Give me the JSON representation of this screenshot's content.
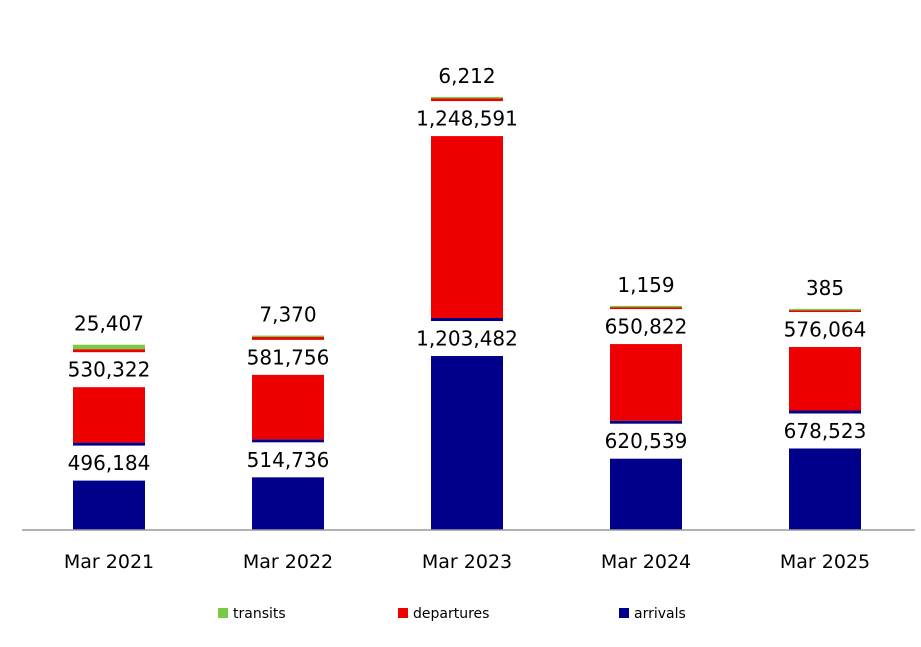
{
  "chart_data": {
    "type": "bar",
    "stacked": true,
    "categories": [
      "Mar 2021",
      "Mar 2022",
      "Mar 2023",
      "Mar 2024",
      "Mar 2025"
    ],
    "series": [
      {
        "name": "arrivals",
        "color": "#00008b",
        "values": [
          496184,
          514736,
          1203482,
          620539,
          678523
        ],
        "labels": [
          "496,184",
          "514,736",
          "1,203,482",
          "620,539",
          "678,523"
        ]
      },
      {
        "name": "departures",
        "color": "#ee0000",
        "values": [
          530322,
          581756,
          1248591,
          650822,
          576064
        ],
        "labels": [
          "530,322",
          "581,756",
          "1,248,591",
          "650,822",
          "576,064"
        ]
      },
      {
        "name": "transits",
        "color": "#77cc44",
        "values": [
          25407,
          7370,
          6212,
          1159,
          385
        ],
        "labels": [
          "25,407",
          "7,370",
          "6,212",
          "1,159",
          "385"
        ]
      }
    ],
    "legend_order": [
      "transits",
      "departures",
      "arrivals"
    ],
    "legend_position": "bottom",
    "title": "",
    "xlabel": "",
    "ylabel": "",
    "ylim": [
      0,
      2458285
    ],
    "grid": false,
    "y_axis_visible": false
  }
}
